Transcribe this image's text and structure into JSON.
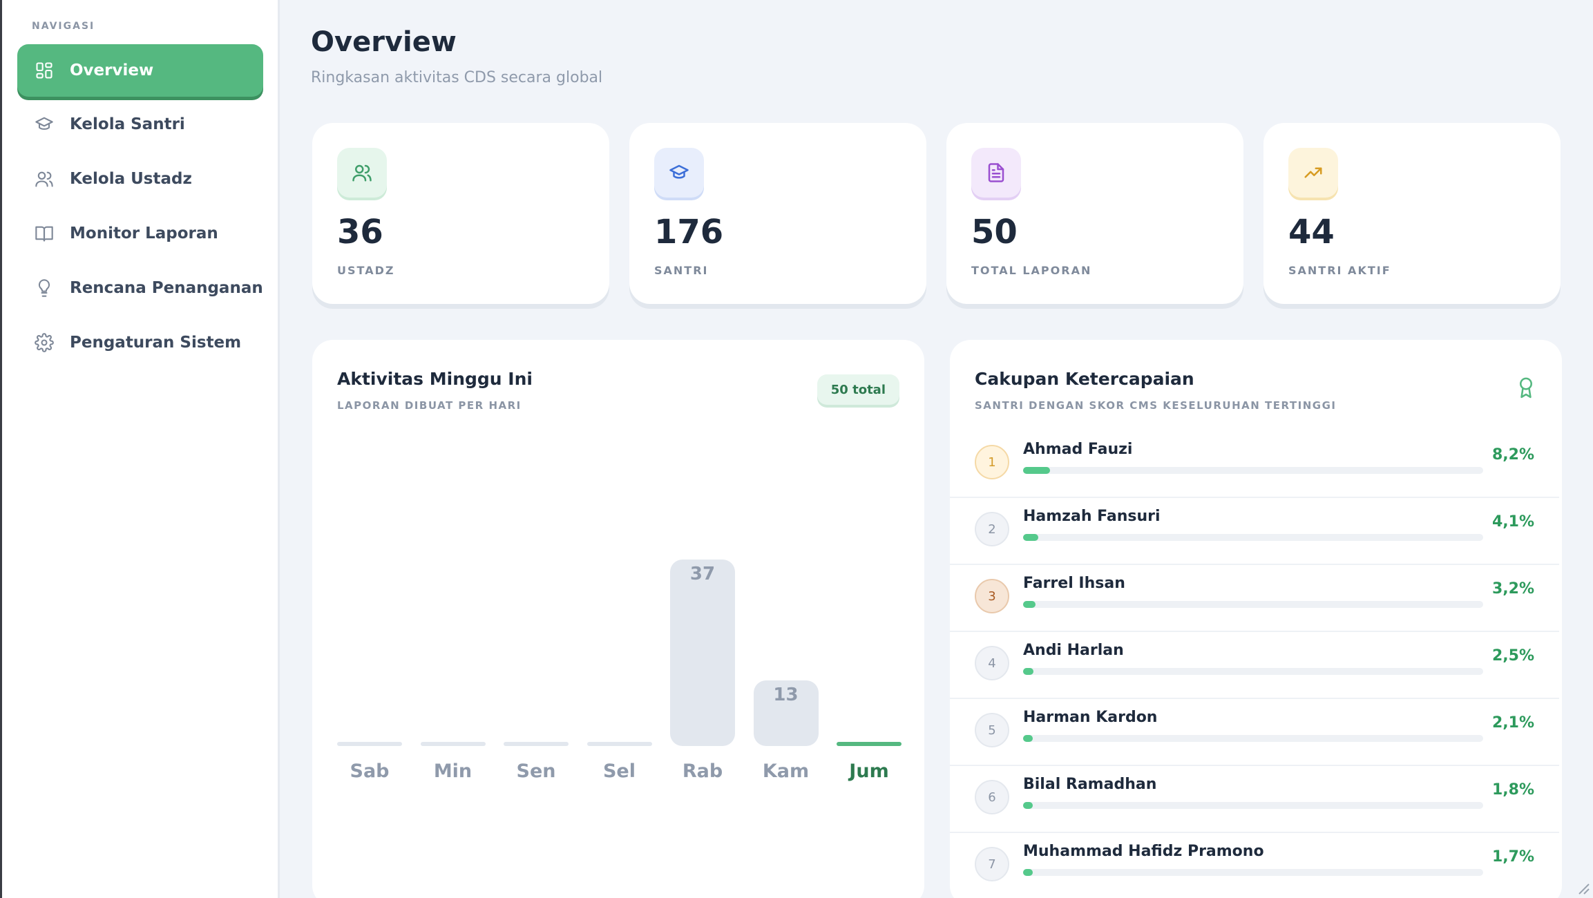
{
  "sidebar": {
    "heading": "NAVIGASI",
    "items": [
      {
        "label": "Overview",
        "icon": "grid-icon",
        "active": true
      },
      {
        "label": "Kelola Santri",
        "icon": "graduation-cap-icon"
      },
      {
        "label": "Kelola Ustadz",
        "icon": "users-icon"
      },
      {
        "label": "Monitor Laporan",
        "icon": "book-icon"
      },
      {
        "label": "Rencana Penanganan",
        "icon": "lightbulb-icon"
      },
      {
        "label": "Pengaturan Sistem",
        "icon": "gear-icon"
      }
    ]
  },
  "header": {
    "title": "Overview",
    "subtitle": "Ringkasan aktivitas CDS secara global"
  },
  "stats": [
    {
      "value": "36",
      "label": "USTADZ",
      "icon": "users-icon",
      "color": "#3f9e6a",
      "bg": "#e6f6ec"
    },
    {
      "value": "176",
      "label": "SANTRI",
      "icon": "graduation-cap-icon",
      "color": "#3d6fd8",
      "bg": "#e8eefc"
    },
    {
      "value": "50",
      "label": "TOTAL LAPORAN",
      "icon": "document-icon",
      "color": "#9a4fd0",
      "bg": "#f3e9fb"
    },
    {
      "value": "44",
      "label": "SANTRI AKTIF",
      "icon": "trending-up-icon",
      "color": "#d79b22",
      "bg": "#fdf4dc"
    }
  ],
  "activity": {
    "title": "Aktivitas Minggu Ini",
    "subtitle": "LAPORAN DIBUAT PER HARI",
    "total_badge": "50 total"
  },
  "chart_data": {
    "type": "bar",
    "title": "Aktivitas Minggu Ini",
    "categories": [
      "Sab",
      "Min",
      "Sen",
      "Sel",
      "Rab",
      "Kam",
      "Jum"
    ],
    "values": [
      0,
      0,
      0,
      0,
      37,
      13,
      0
    ],
    "highlight_category": "Jum",
    "colors": {
      "bar": "#e2e7ee",
      "highlight": "#55b880"
    }
  },
  "achievement": {
    "title": "Cakupan Ketercapaian",
    "subtitle": "SANTRI DENGAN SKOR CMS KESELURUHAN TERTINGGI",
    "icon": "award-icon",
    "rows": [
      {
        "rank": "1",
        "name": "Ahmad Fauzi",
        "pct": "8,2%",
        "value": 8.2,
        "style": "gold"
      },
      {
        "rank": "2",
        "name": "Hamzah Fansuri",
        "pct": "4,1%",
        "value": 4.1,
        "style": "silver"
      },
      {
        "rank": "3",
        "name": "Farrel Ihsan",
        "pct": "3,2%",
        "value": 3.2,
        "style": "bronze"
      },
      {
        "rank": "4",
        "name": "Andi Harlan",
        "pct": "2,5%",
        "value": 2.5,
        "style": "plain"
      },
      {
        "rank": "5",
        "name": "Harman Kardon",
        "pct": "2,1%",
        "value": 2.1,
        "style": "plain"
      },
      {
        "rank": "6",
        "name": "Bilal Ramadhan",
        "pct": "1,8%",
        "value": 1.8,
        "style": "plain"
      },
      {
        "rank": "7",
        "name": "Muhammad Hafidz Pramono",
        "pct": "1,7%",
        "value": 1.7,
        "style": "plain"
      }
    ]
  }
}
